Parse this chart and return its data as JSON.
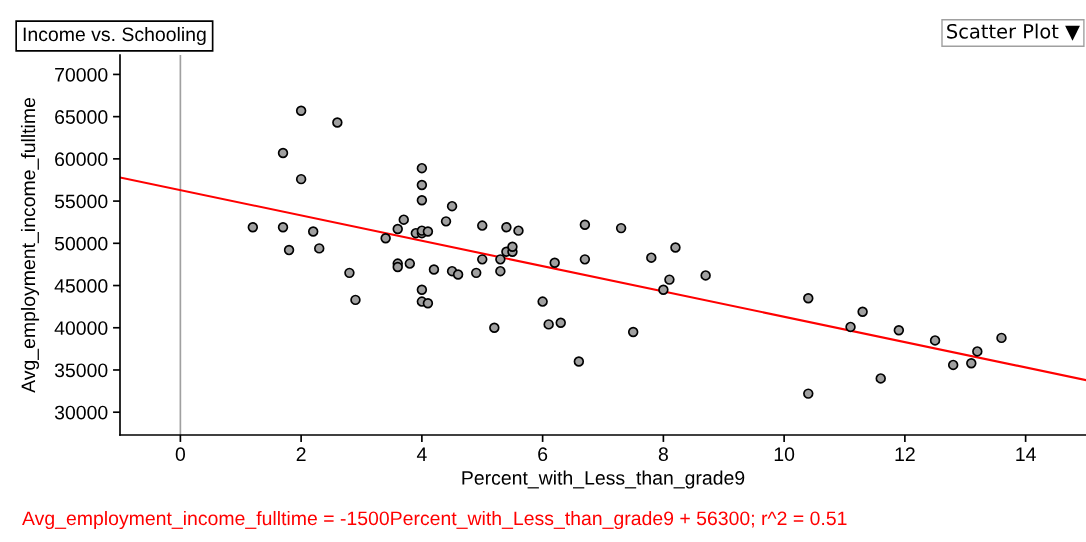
{
  "chart_data": {
    "type": "scatter",
    "title": "Income vs. Schooling",
    "xlabel": "Percent_with_Less_than_grade9",
    "ylabel": "Avg_employment_income_fulltime",
    "annotations": [
      "Scatter Plot ▼",
      "Avg_employment_income_fulltime = -1500Percent_with_Less_than_grade9 + 56300; r^2 = 0.51"
    ],
    "series": [
      {
        "color": "#a0a0a0",
        "marker": "circle",
        "x": [
          1.2,
          1.7,
          1.7,
          1.8,
          2.0,
          2.0,
          2.2,
          2.3,
          2.6,
          2.8,
          2.9,
          3.4,
          3.6,
          3.6,
          3.6,
          3.7,
          3.8,
          3.9,
          4.0,
          4.0,
          4.0,
          4.0,
          4.0,
          4.1,
          4.0,
          4.0,
          4.1,
          4.2,
          4.4,
          4.5,
          4.5,
          4.6,
          4.9,
          5.0,
          5.0,
          5.2,
          5.3,
          5.3,
          5.4,
          5.4,
          5.5,
          5.5,
          5.6,
          6.0,
          6.1,
          6.3,
          6.2,
          6.7,
          6.7,
          7.3,
          7.8,
          8.2,
          8.1,
          8.7,
          6.6,
          7.5,
          8.0,
          10.4,
          10.4,
          11.1,
          11.3,
          11.6,
          11.9,
          12.5,
          12.8,
          13.1,
          13.2,
          13.6
        ],
        "values": [
          51900,
          60700,
          51900,
          49200,
          65700,
          57600,
          51400,
          49400,
          64300,
          46500,
          43300,
          50600,
          51700,
          47600,
          47200,
          52800,
          47600,
          51200,
          58900,
          56900,
          55100,
          51200,
          51500,
          51400,
          44500,
          43100,
          42900,
          46900,
          52600,
          54400,
          46700,
          46300,
          46500,
          52100,
          48100,
          40000,
          48100,
          46700,
          51900,
          49000,
          49000,
          49600,
          51500,
          43100,
          40400,
          40600,
          47700,
          52200,
          48100,
          51800,
          48300,
          49500,
          45700,
          46200,
          36000,
          39500,
          44500,
          43500,
          32200,
          40100,
          41900,
          34000,
          39700,
          38500,
          35600,
          35800,
          37200,
          38800
        ]
      },
      {
        "type": "line",
        "marker": "none",
        "color": "#ff0000",
        "x": [
          -1,
          15
        ],
        "values": [
          57800,
          33800
        ]
      }
    ],
    "xlim": [
      -1,
      15
    ],
    "xticks": [
      0,
      2,
      4,
      6,
      8,
      10,
      12,
      14
    ],
    "ylim": [
      27300,
      72300
    ],
    "yticks": [
      30000,
      35000,
      40000,
      45000,
      50000,
      55000,
      60000,
      65000,
      70000
    ],
    "ref_lines": [
      {
        "axis": "x",
        "value": 0,
        "color": "#a0a0a0"
      }
    ],
    "grid": false,
    "legend": false
  }
}
